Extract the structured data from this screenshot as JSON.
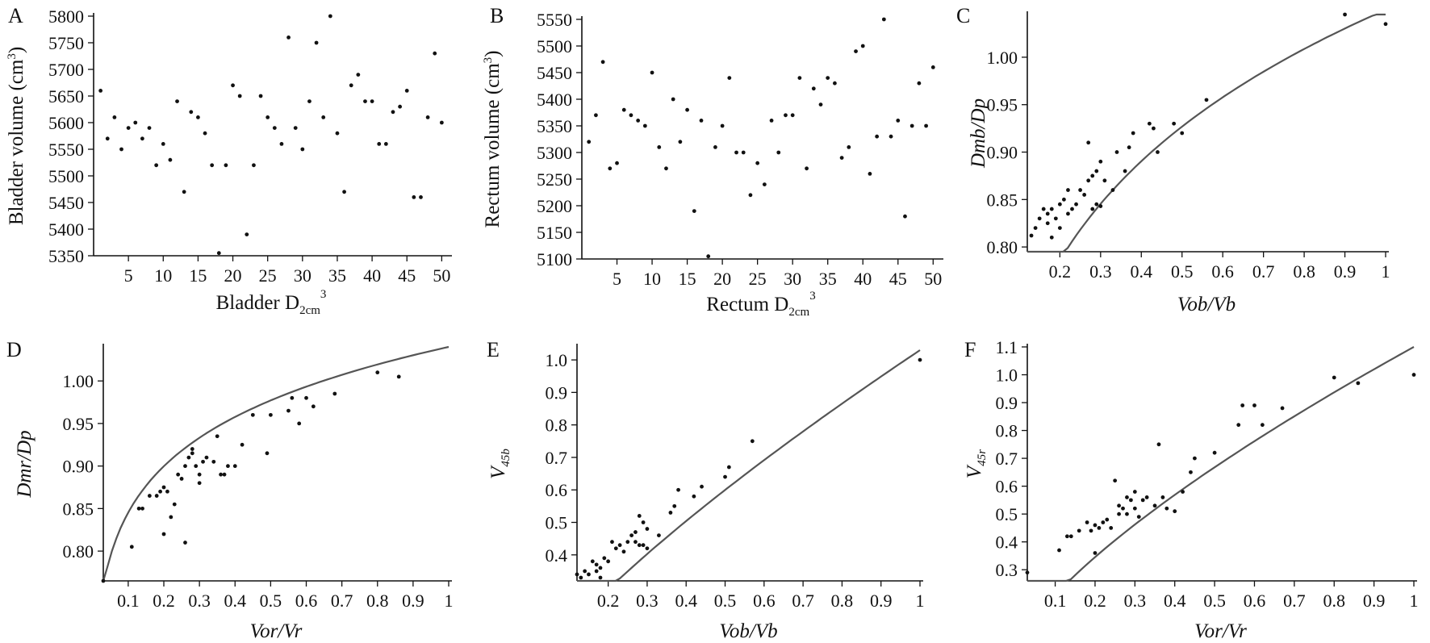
{
  "chart_data": [
    {
      "panel": "A",
      "type": "scatter",
      "xlabel": "Bladder D",
      "xlabel_sub": "2cm",
      "xlabel_sup": "3",
      "ylabel": "Bladder volume (cm",
      "ylabel_sup": "3",
      "ylabel_end": ")",
      "xlim": [
        0,
        51
      ],
      "ylim": [
        5350,
        5800
      ],
      "xticks": [
        5,
        10,
        15,
        20,
        25,
        30,
        35,
        40,
        45,
        50
      ],
      "yticks": [
        5350,
        5400,
        5450,
        5500,
        5550,
        5600,
        5650,
        5700,
        5750,
        5800
      ],
      "points": [
        [
          1,
          5660
        ],
        [
          2,
          5570
        ],
        [
          3,
          5610
        ],
        [
          4,
          5550
        ],
        [
          5,
          5590
        ],
        [
          6,
          5600
        ],
        [
          7,
          5570
        ],
        [
          8,
          5590
        ],
        [
          9,
          5520
        ],
        [
          10,
          5560
        ],
        [
          11,
          5530
        ],
        [
          12,
          5640
        ],
        [
          13,
          5470
        ],
        [
          14,
          5620
        ],
        [
          15,
          5610
        ],
        [
          16,
          5580
        ],
        [
          17,
          5520
        ],
        [
          18,
          5355
        ],
        [
          19,
          5520
        ],
        [
          20,
          5670
        ],
        [
          21,
          5650
        ],
        [
          22,
          5390
        ],
        [
          23,
          5520
        ],
        [
          24,
          5650
        ],
        [
          25,
          5610
        ],
        [
          26,
          5590
        ],
        [
          27,
          5560
        ],
        [
          28,
          5760
        ],
        [
          29,
          5590
        ],
        [
          30,
          5550
        ],
        [
          31,
          5640
        ],
        [
          32,
          5750
        ],
        [
          33,
          5610
        ],
        [
          34,
          5800
        ],
        [
          35,
          5580
        ],
        [
          36,
          5470
        ],
        [
          37,
          5670
        ],
        [
          38,
          5690
        ],
        [
          39,
          5640
        ],
        [
          40,
          5640
        ],
        [
          41,
          5560
        ],
        [
          42,
          5560
        ],
        [
          43,
          5620
        ],
        [
          44,
          5630
        ],
        [
          45,
          5660
        ],
        [
          46,
          5460
        ],
        [
          47,
          5460
        ],
        [
          48,
          5610
        ],
        [
          49,
          5730
        ],
        [
          50,
          5600
        ]
      ]
    },
    {
      "panel": "B",
      "type": "scatter",
      "xlabel": "Rectum D",
      "xlabel_sub": "2cm",
      "xlabel_sup": "3",
      "ylabel": "Rectum volume (cm",
      "ylabel_sup": "3",
      "ylabel_end": ")",
      "xlim": [
        0,
        51
      ],
      "ylim": [
        5100,
        5550
      ],
      "xticks": [
        5,
        10,
        15,
        20,
        25,
        30,
        35,
        40,
        45,
        50
      ],
      "yticks": [
        5100,
        5150,
        5200,
        5250,
        5300,
        5350,
        5400,
        5450,
        5500,
        5550
      ],
      "points": [
        [
          1,
          5320
        ],
        [
          2,
          5370
        ],
        [
          3,
          5470
        ],
        [
          4,
          5270
        ],
        [
          5,
          5280
        ],
        [
          6,
          5380
        ],
        [
          7,
          5370
        ],
        [
          8,
          5360
        ],
        [
          9,
          5350
        ],
        [
          10,
          5450
        ],
        [
          11,
          5310
        ],
        [
          12,
          5270
        ],
        [
          13,
          5400
        ],
        [
          14,
          5320
        ],
        [
          15,
          5380
        ],
        [
          16,
          5190
        ],
        [
          17,
          5360
        ],
        [
          18,
          5105
        ],
        [
          19,
          5310
        ],
        [
          20,
          5350
        ],
        [
          21,
          5440
        ],
        [
          22,
          5300
        ],
        [
          23,
          5300
        ],
        [
          24,
          5220
        ],
        [
          25,
          5280
        ],
        [
          26,
          5240
        ],
        [
          27,
          5360
        ],
        [
          28,
          5300
        ],
        [
          29,
          5370
        ],
        [
          30,
          5370
        ],
        [
          31,
          5440
        ],
        [
          32,
          5270
        ],
        [
          33,
          5420
        ],
        [
          34,
          5390
        ],
        [
          35,
          5440
        ],
        [
          36,
          5430
        ],
        [
          37,
          5290
        ],
        [
          38,
          5310
        ],
        [
          39,
          5490
        ],
        [
          40,
          5500
        ],
        [
          41,
          5260
        ],
        [
          42,
          5330
        ],
        [
          43,
          5550
        ],
        [
          44,
          5330
        ],
        [
          45,
          5360
        ],
        [
          46,
          5180
        ],
        [
          47,
          5350
        ],
        [
          48,
          5430
        ],
        [
          49,
          5350
        ],
        [
          50,
          5460
        ]
      ]
    },
    {
      "panel": "C",
      "type": "scatter",
      "xlabel": "Vob/Vb",
      "ylabel": "Dmb/Dp",
      "xlim": [
        0.12,
        1.0
      ],
      "ylim": [
        0.795,
        1.045
      ],
      "xticks": [
        0.2,
        0.3,
        0.4,
        0.5,
        0.6,
        0.7,
        0.8,
        0.9,
        1.0
      ],
      "ytick_labels": [
        "0.80",
        "0.85",
        "0.90",
        "0.95",
        "1.00"
      ],
      "yticks": [
        0.8,
        0.85,
        0.9,
        0.95,
        1.0
      ],
      "fit": {
        "a": 1.05,
        "b": 0.18
      },
      "points": [
        [
          0.13,
          0.812
        ],
        [
          0.14,
          0.82
        ],
        [
          0.15,
          0.83
        ],
        [
          0.16,
          0.84
        ],
        [
          0.17,
          0.835
        ],
        [
          0.17,
          0.825
        ],
        [
          0.18,
          0.81
        ],
        [
          0.18,
          0.84
        ],
        [
          0.19,
          0.83
        ],
        [
          0.2,
          0.82
        ],
        [
          0.2,
          0.845
        ],
        [
          0.21,
          0.85
        ],
        [
          0.22,
          0.835
        ],
        [
          0.22,
          0.86
        ],
        [
          0.23,
          0.84
        ],
        [
          0.24,
          0.845
        ],
        [
          0.25,
          0.86
        ],
        [
          0.26,
          0.855
        ],
        [
          0.27,
          0.87
        ],
        [
          0.27,
          0.91
        ],
        [
          0.28,
          0.84
        ],
        [
          0.28,
          0.875
        ],
        [
          0.29,
          0.88
        ],
        [
          0.29,
          0.845
        ],
        [
          0.3,
          0.89
        ],
        [
          0.3,
          0.843
        ],
        [
          0.31,
          0.87
        ],
        [
          0.33,
          0.86
        ],
        [
          0.34,
          0.9
        ],
        [
          0.36,
          0.88
        ],
        [
          0.37,
          0.905
        ],
        [
          0.38,
          0.92
        ],
        [
          0.42,
          0.93
        ],
        [
          0.43,
          0.925
        ],
        [
          0.44,
          0.9
        ],
        [
          0.48,
          0.93
        ],
        [
          0.5,
          0.92
        ],
        [
          0.56,
          0.955
        ],
        [
          0.9,
          1.045
        ],
        [
          1.0,
          1.035
        ]
      ]
    },
    {
      "panel": "D",
      "type": "scatter",
      "xlabel": "Vor/Vr",
      "ylabel": "Dmr/Dp",
      "xlim": [
        0.03,
        1.0
      ],
      "ylim": [
        0.765,
        1.04
      ],
      "xticks": [
        0.1,
        0.2,
        0.3,
        0.4,
        0.5,
        0.6,
        0.7,
        0.8,
        0.9,
        1.0
      ],
      "ytick_labels": [
        "0.80",
        "0.85",
        "0.90",
        "0.95",
        "1.00"
      ],
      "yticks": [
        0.8,
        0.85,
        0.9,
        0.95,
        1.0
      ],
      "fit": {
        "a": 1.04,
        "b": 0.09
      },
      "points": [
        [
          0.03,
          0.765
        ],
        [
          0.11,
          0.805
        ],
        [
          0.13,
          0.85
        ],
        [
          0.14,
          0.85
        ],
        [
          0.16,
          0.865
        ],
        [
          0.18,
          0.865
        ],
        [
          0.19,
          0.87
        ],
        [
          0.2,
          0.875
        ],
        [
          0.2,
          0.82
        ],
        [
          0.21,
          0.87
        ],
        [
          0.22,
          0.84
        ],
        [
          0.23,
          0.855
        ],
        [
          0.24,
          0.89
        ],
        [
          0.25,
          0.885
        ],
        [
          0.26,
          0.9
        ],
        [
          0.26,
          0.81
        ],
        [
          0.27,
          0.91
        ],
        [
          0.28,
          0.915
        ],
        [
          0.28,
          0.92
        ],
        [
          0.29,
          0.9
        ],
        [
          0.3,
          0.89
        ],
        [
          0.3,
          0.88
        ],
        [
          0.31,
          0.905
        ],
        [
          0.32,
          0.91
        ],
        [
          0.34,
          0.905
        ],
        [
          0.35,
          0.935
        ],
        [
          0.36,
          0.89
        ],
        [
          0.37,
          0.89
        ],
        [
          0.38,
          0.9
        ],
        [
          0.4,
          0.9
        ],
        [
          0.42,
          0.925
        ],
        [
          0.45,
          0.96
        ],
        [
          0.49,
          0.915
        ],
        [
          0.5,
          0.96
        ],
        [
          0.55,
          0.965
        ],
        [
          0.56,
          0.98
        ],
        [
          0.58,
          0.95
        ],
        [
          0.6,
          0.98
        ],
        [
          0.62,
          0.97
        ],
        [
          0.68,
          0.985
        ],
        [
          0.8,
          1.01
        ],
        [
          0.86,
          1.005
        ]
      ]
    },
    {
      "panel": "E",
      "type": "scatter",
      "xlabel": "Vob/Vb",
      "ylabel": "V",
      "ylabel_sub": "45b",
      "xlim": [
        0.12,
        1.0
      ],
      "ylim": [
        0.32,
        1.04
      ],
      "xticks": [
        0.2,
        0.3,
        0.4,
        0.5,
        0.6,
        0.7,
        0.8,
        0.9,
        1.0
      ],
      "ytick_labels": [
        "0.4",
        "0.5",
        "0.6",
        "0.7",
        "0.8",
        "0.9",
        "1.0"
      ],
      "yticks": [
        0.4,
        0.5,
        0.6,
        0.7,
        0.8,
        0.9,
        1.0
      ],
      "fit": {
        "a": 1.03,
        "b": 0.78
      },
      "points": [
        [
          0.12,
          0.34
        ],
        [
          0.13,
          0.33
        ],
        [
          0.14,
          0.35
        ],
        [
          0.15,
          0.34
        ],
        [
          0.16,
          0.38
        ],
        [
          0.17,
          0.37
        ],
        [
          0.17,
          0.35
        ],
        [
          0.18,
          0.33
        ],
        [
          0.18,
          0.36
        ],
        [
          0.19,
          0.39
        ],
        [
          0.2,
          0.38
        ],
        [
          0.21,
          0.44
        ],
        [
          0.22,
          0.42
        ],
        [
          0.23,
          0.43
        ],
        [
          0.24,
          0.41
        ],
        [
          0.25,
          0.44
        ],
        [
          0.26,
          0.46
        ],
        [
          0.27,
          0.47
        ],
        [
          0.27,
          0.44
        ],
        [
          0.28,
          0.43
        ],
        [
          0.28,
          0.52
        ],
        [
          0.29,
          0.5
        ],
        [
          0.29,
          0.43
        ],
        [
          0.3,
          0.42
        ],
        [
          0.3,
          0.48
        ],
        [
          0.33,
          0.46
        ],
        [
          0.36,
          0.53
        ],
        [
          0.37,
          0.55
        ],
        [
          0.38,
          0.6
        ],
        [
          0.42,
          0.58
        ],
        [
          0.44,
          0.61
        ],
        [
          0.5,
          0.64
        ],
        [
          0.51,
          0.67
        ],
        [
          0.57,
          0.75
        ],
        [
          1.0,
          1.0
        ]
      ]
    },
    {
      "panel": "F",
      "type": "scatter",
      "xlabel": "Vor/Vr",
      "ylabel": "V",
      "ylabel_sub": "45r",
      "xlim": [
        0.03,
        1.0
      ],
      "ylim": [
        0.26,
        1.1
      ],
      "xticks": [
        0.1,
        0.2,
        0.3,
        0.4,
        0.5,
        0.6,
        0.7,
        0.8,
        0.9,
        1.0
      ],
      "ytick_labels": [
        "0.3",
        "0.4",
        "0.5",
        "0.6",
        "0.7",
        "0.8",
        "0.9",
        "1.0",
        "1.1"
      ],
      "yticks": [
        0.3,
        0.4,
        0.5,
        0.6,
        0.7,
        0.8,
        0.9,
        1.0,
        1.1
      ],
      "fit": {
        "a": 1.1,
        "b": 0.72
      },
      "points": [
        [
          0.03,
          0.29
        ],
        [
          0.11,
          0.37
        ],
        [
          0.13,
          0.42
        ],
        [
          0.14,
          0.42
        ],
        [
          0.16,
          0.44
        ],
        [
          0.18,
          0.47
        ],
        [
          0.19,
          0.44
        ],
        [
          0.2,
          0.36
        ],
        [
          0.2,
          0.46
        ],
        [
          0.21,
          0.45
        ],
        [
          0.22,
          0.47
        ],
        [
          0.23,
          0.48
        ],
        [
          0.24,
          0.45
        ],
        [
          0.25,
          0.62
        ],
        [
          0.26,
          0.53
        ],
        [
          0.26,
          0.5
        ],
        [
          0.27,
          0.52
        ],
        [
          0.28,
          0.56
        ],
        [
          0.28,
          0.5
        ],
        [
          0.29,
          0.55
        ],
        [
          0.3,
          0.58
        ],
        [
          0.3,
          0.52
        ],
        [
          0.31,
          0.49
        ],
        [
          0.32,
          0.55
        ],
        [
          0.33,
          0.56
        ],
        [
          0.35,
          0.53
        ],
        [
          0.36,
          0.75
        ],
        [
          0.37,
          0.56
        ],
        [
          0.38,
          0.52
        ],
        [
          0.4,
          0.51
        ],
        [
          0.42,
          0.58
        ],
        [
          0.44,
          0.65
        ],
        [
          0.45,
          0.7
        ],
        [
          0.5,
          0.72
        ],
        [
          0.56,
          0.82
        ],
        [
          0.57,
          0.89
        ],
        [
          0.6,
          0.89
        ],
        [
          0.62,
          0.82
        ],
        [
          0.67,
          0.88
        ],
        [
          0.8,
          0.99
        ],
        [
          0.86,
          0.97
        ],
        [
          1.0,
          1.0
        ]
      ]
    }
  ]
}
